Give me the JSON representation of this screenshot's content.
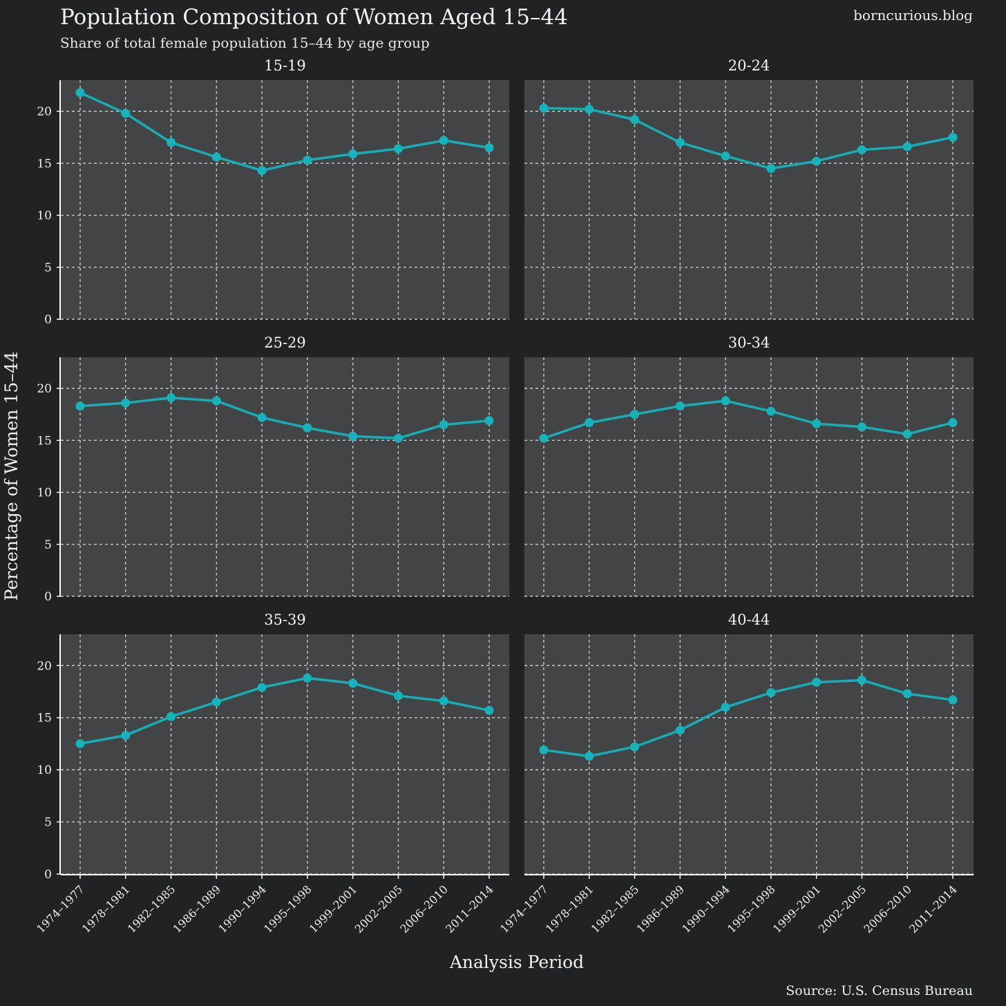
{
  "header": {
    "title": "Population Composition of Women Aged 15–44",
    "subtitle": "Share of total female population 15–44 by age group",
    "brand": "borncurious.blog",
    "source": "Source: U.S. Census Bureau"
  },
  "colors": {
    "background": "#212224",
    "panel": "#434446",
    "line": "#18acb4",
    "point": "#16b3bb",
    "grid": "#d6d6d6",
    "axis": "#ffffff",
    "text": "#f2f2f2"
  },
  "chart_data": {
    "type": "line",
    "title": "Population Composition of Women Aged 15–44",
    "subtitle": "Share of total female population 15–44 by age group",
    "xlabel": "Analysis Period",
    "ylabel": "Percentage of Women 15–44",
    "ylim": [
      0,
      23
    ],
    "yticks": [
      0,
      5,
      10,
      15,
      20
    ],
    "grid": true,
    "categories": [
      "1974–1977",
      "1978–1981",
      "1982–1985",
      "1986–1989",
      "1990–1994",
      "1995–1998",
      "1999–2001",
      "2002–2005",
      "2006–2010",
      "2011–2014"
    ],
    "panels": [
      {
        "name": "15-19",
        "values": [
          21.8,
          19.8,
          17.0,
          15.6,
          14.3,
          15.3,
          15.9,
          16.4,
          17.2,
          16.5
        ]
      },
      {
        "name": "20-24",
        "values": [
          20.3,
          20.2,
          19.2,
          17.0,
          15.7,
          14.5,
          15.2,
          16.3,
          16.6,
          17.5
        ]
      },
      {
        "name": "25-29",
        "values": [
          18.3,
          18.6,
          19.1,
          18.8,
          17.2,
          16.2,
          15.4,
          15.2,
          16.5,
          16.9
        ]
      },
      {
        "name": "30-34",
        "values": [
          15.2,
          16.7,
          17.5,
          18.3,
          18.8,
          17.8,
          16.6,
          16.3,
          15.6,
          16.7
        ]
      },
      {
        "name": "35-39",
        "values": [
          12.5,
          13.3,
          15.1,
          16.5,
          17.9,
          18.8,
          18.3,
          17.1,
          16.6,
          15.7
        ]
      },
      {
        "name": "40-44",
        "values": [
          11.9,
          11.3,
          12.2,
          13.8,
          16.0,
          17.4,
          18.4,
          18.6,
          17.3,
          16.7
        ]
      }
    ]
  }
}
